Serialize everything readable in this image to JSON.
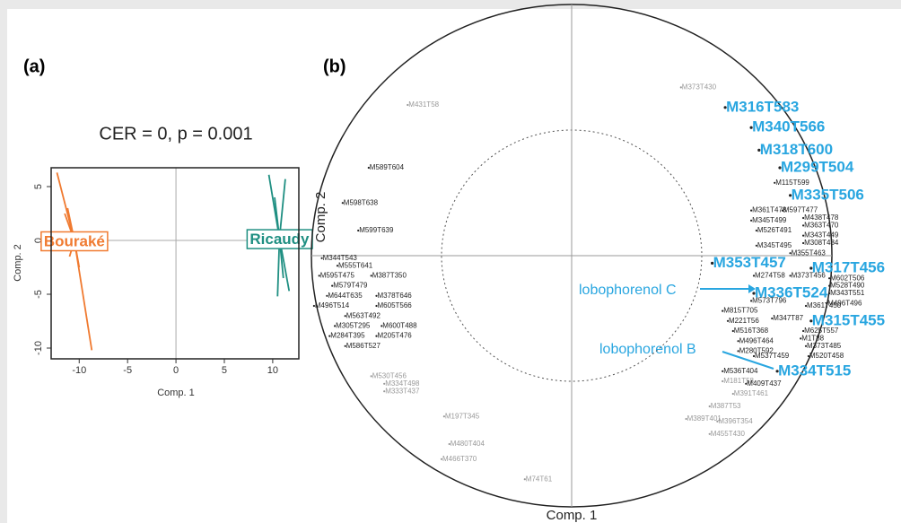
{
  "chart_data": [
    {
      "type": "star",
      "label": "(a)",
      "title": "CER = 0, p = 0.001",
      "x_label": "Comp. 1",
      "y_label": "Comp. 2",
      "xlim": [
        -12.9,
        12.7
      ],
      "ylim": [
        -11,
        6.75
      ],
      "xticks": [
        -10,
        -5,
        0,
        5,
        10
      ],
      "yticks": [
        -10,
        -5,
        0,
        5
      ],
      "series": [
        {
          "name": "Bouraké",
          "color": "#f07a30",
          "centroid": [
            -10.5,
            0
          ],
          "x": [
            -12.3,
            -8.7,
            -11.5,
            -11.0,
            -10.0,
            -11.2
          ],
          "y": [
            6.3,
            -10.2,
            2.5,
            -1.5,
            -2.5,
            3.0
          ]
        },
        {
          "name": "Ricaudy",
          "color": "#1f8f82",
          "centroid": [
            10.7,
            0.2
          ],
          "x": [
            9.6,
            11.3,
            10.5,
            11.7,
            11.1,
            10.2
          ],
          "y": [
            6.1,
            5.7,
            -5.2,
            -4.7,
            -3.5,
            4.0
          ]
        }
      ]
    },
    {
      "type": "correlation-circle",
      "label": "(b)",
      "x_label": "Comp. 1",
      "y_label": "Comp. 2",
      "xlim": [
        -1,
        1
      ],
      "ylim": [
        -1,
        1
      ],
      "inner_radius": 0.5,
      "annotations": [
        "lobophorenol C",
        "lobophorenol B"
      ],
      "variables": [
        {
          "label": "M589T604",
          "x": -0.78,
          "y": 0.35,
          "color": "#222"
        },
        {
          "label": "M598T638",
          "x": -0.88,
          "y": 0.21,
          "color": "#222"
        },
        {
          "label": "M599T639",
          "x": -0.82,
          "y": 0.1,
          "color": "#222"
        },
        {
          "label": "M344T543",
          "x": -0.96,
          "y": -0.01,
          "color": "#222"
        },
        {
          "label": "M555T641",
          "x": -0.9,
          "y": -0.04,
          "color": "#222"
        },
        {
          "label": "M595T475",
          "x": -0.97,
          "y": -0.08,
          "color": "#222"
        },
        {
          "label": "M387T350",
          "x": -0.77,
          "y": -0.08,
          "color": "#222"
        },
        {
          "label": "M579T479",
          "x": -0.92,
          "y": -0.12,
          "color": "#222"
        },
        {
          "label": "M378T646",
          "x": -0.75,
          "y": -0.16,
          "color": "#222"
        },
        {
          "label": "M644T635",
          "x": -0.94,
          "y": -0.16,
          "color": "#222"
        },
        {
          "label": "M496T514",
          "x": -0.99,
          "y": -0.2,
          "color": "#222"
        },
        {
          "label": "M605T566",
          "x": -0.75,
          "y": -0.2,
          "color": "#222"
        },
        {
          "label": "M563T492",
          "x": -0.87,
          "y": -0.24,
          "color": "#222"
        },
        {
          "label": "M305T295",
          "x": -0.91,
          "y": -0.28,
          "color": "#222"
        },
        {
          "label": "M600T488",
          "x": -0.73,
          "y": -0.28,
          "color": "#222"
        },
        {
          "label": "M284T395",
          "x": -0.93,
          "y": -0.32,
          "color": "#222"
        },
        {
          "label": "M205T476",
          "x": -0.75,
          "y": -0.32,
          "color": "#222"
        },
        {
          "label": "M586T527",
          "x": -0.87,
          "y": -0.36,
          "color": "#222"
        },
        {
          "label": "M431T58",
          "x": -0.63,
          "y": 0.6,
          "color": "#999"
        },
        {
          "label": "M530T456",
          "x": -0.77,
          "y": -0.48,
          "color": "#999"
        },
        {
          "label": "M334T498",
          "x": -0.72,
          "y": -0.51,
          "color": "#999"
        },
        {
          "label": "M333T437",
          "x": -0.72,
          "y": -0.54,
          "color": "#999"
        },
        {
          "label": "M197T345",
          "x": -0.49,
          "y": -0.64,
          "color": "#999"
        },
        {
          "label": "M480T404",
          "x": -0.47,
          "y": -0.75,
          "color": "#999"
        },
        {
          "label": "M466T370",
          "x": -0.5,
          "y": -0.81,
          "color": "#999"
        },
        {
          "label": "M74T61",
          "x": -0.18,
          "y": -0.89,
          "color": "#999"
        },
        {
          "label": "M373T430",
          "x": 0.42,
          "y": 0.67,
          "color": "#999"
        },
        {
          "label": "M181T58",
          "x": 0.58,
          "y": -0.5,
          "color": "#999"
        },
        {
          "label": "M391T461",
          "x": 0.62,
          "y": -0.55,
          "color": "#999"
        },
        {
          "label": "M387T53",
          "x": 0.53,
          "y": -0.6,
          "color": "#999"
        },
        {
          "label": "M389T401",
          "x": 0.44,
          "y": -0.65,
          "color": "#999"
        },
        {
          "label": "M396T354",
          "x": 0.56,
          "y": -0.66,
          "color": "#999"
        },
        {
          "label": "M455T430",
          "x": 0.53,
          "y": -0.71,
          "color": "#999"
        },
        {
          "label": "M115T599",
          "x": 0.78,
          "y": 0.29,
          "color": "#222"
        },
        {
          "label": "M361T478",
          "x": 0.69,
          "y": 0.18,
          "color": "#222"
        },
        {
          "label": "M597T477",
          "x": 0.81,
          "y": 0.18,
          "color": "#222"
        },
        {
          "label": "M345T499",
          "x": 0.69,
          "y": 0.14,
          "color": "#222"
        },
        {
          "label": "M438T478",
          "x": 0.89,
          "y": 0.15,
          "color": "#222"
        },
        {
          "label": "M526T491",
          "x": 0.71,
          "y": 0.1,
          "color": "#222"
        },
        {
          "label": "M363T470",
          "x": 0.89,
          "y": 0.12,
          "color": "#222"
        },
        {
          "label": "M343T449",
          "x": 0.89,
          "y": 0.08,
          "color": "#222"
        },
        {
          "label": "M345T495",
          "x": 0.71,
          "y": 0.04,
          "color": "#222"
        },
        {
          "label": "M308T484",
          "x": 0.89,
          "y": 0.05,
          "color": "#222"
        },
        {
          "label": "M355T463",
          "x": 0.84,
          "y": 0.01,
          "color": "#222"
        },
        {
          "label": "M274T58",
          "x": 0.7,
          "y": -0.08,
          "color": "#222"
        },
        {
          "label": "M373T456",
          "x": 0.84,
          "y": -0.08,
          "color": "#222"
        },
        {
          "label": "M602T506",
          "x": 0.99,
          "y": -0.09,
          "color": "#222"
        },
        {
          "label": "M528T490",
          "x": 0.99,
          "y": -0.12,
          "color": "#222"
        },
        {
          "label": "M343T551",
          "x": 0.99,
          "y": -0.15,
          "color": "#222"
        },
        {
          "label": "M573T796",
          "x": 0.69,
          "y": -0.18,
          "color": "#222"
        },
        {
          "label": "M361T450",
          "x": 0.9,
          "y": -0.2,
          "color": "#222"
        },
        {
          "label": "M496T496",
          "x": 0.98,
          "y": -0.19,
          "color": "#222"
        },
        {
          "label": "M815T705",
          "x": 0.58,
          "y": -0.22,
          "color": "#222"
        },
        {
          "label": "M221T56",
          "x": 0.6,
          "y": -0.26,
          "color": "#222"
        },
        {
          "label": "M347T87",
          "x": 0.77,
          "y": -0.25,
          "color": "#222"
        },
        {
          "label": "M516T368",
          "x": 0.62,
          "y": -0.3,
          "color": "#222"
        },
        {
          "label": "M625T557",
          "x": 0.89,
          "y": -0.3,
          "color": "#222"
        },
        {
          "label": "M496T464",
          "x": 0.64,
          "y": -0.34,
          "color": "#222"
        },
        {
          "label": "M1T88",
          "x": 0.88,
          "y": -0.33,
          "color": "#222"
        },
        {
          "label": "M280T592",
          "x": 0.64,
          "y": -0.38,
          "color": "#222"
        },
        {
          "label": "M373T485",
          "x": 0.9,
          "y": -0.36,
          "color": "#222"
        },
        {
          "label": "M537T459",
          "x": 0.7,
          "y": -0.4,
          "color": "#222"
        },
        {
          "label": "M520T458",
          "x": 0.91,
          "y": -0.4,
          "color": "#222"
        },
        {
          "label": "M536T404",
          "x": 0.58,
          "y": -0.46,
          "color": "#222"
        },
        {
          "label": "M409T437",
          "x": 0.67,
          "y": -0.51,
          "color": "#222"
        },
        {
          "label": "M316T583",
          "x": 0.59,
          "y": 0.59,
          "color": "#29a6e0"
        },
        {
          "label": "M340T566",
          "x": 0.69,
          "y": 0.51,
          "color": "#29a6e0"
        },
        {
          "label": "M318T600",
          "x": 0.72,
          "y": 0.42,
          "color": "#29a6e0"
        },
        {
          "label": "M299T504",
          "x": 0.8,
          "y": 0.35,
          "color": "#29a6e0"
        },
        {
          "label": "M335T506",
          "x": 0.84,
          "y": 0.24,
          "color": "#29a6e0"
        },
        {
          "label": "M353T457",
          "x": 0.54,
          "y": -0.03,
          "color": "#29a6e0"
        },
        {
          "label": "M317T456",
          "x": 0.92,
          "y": -0.05,
          "color": "#29a6e0"
        },
        {
          "label": "M336T524",
          "x": 0.7,
          "y": -0.15,
          "color": "#29a6e0"
        },
        {
          "label": "M315T455",
          "x": 0.92,
          "y": -0.26,
          "color": "#29a6e0"
        },
        {
          "label": "M334T515",
          "x": 0.79,
          "y": -0.46,
          "color": "#29a6e0"
        }
      ]
    }
  ]
}
